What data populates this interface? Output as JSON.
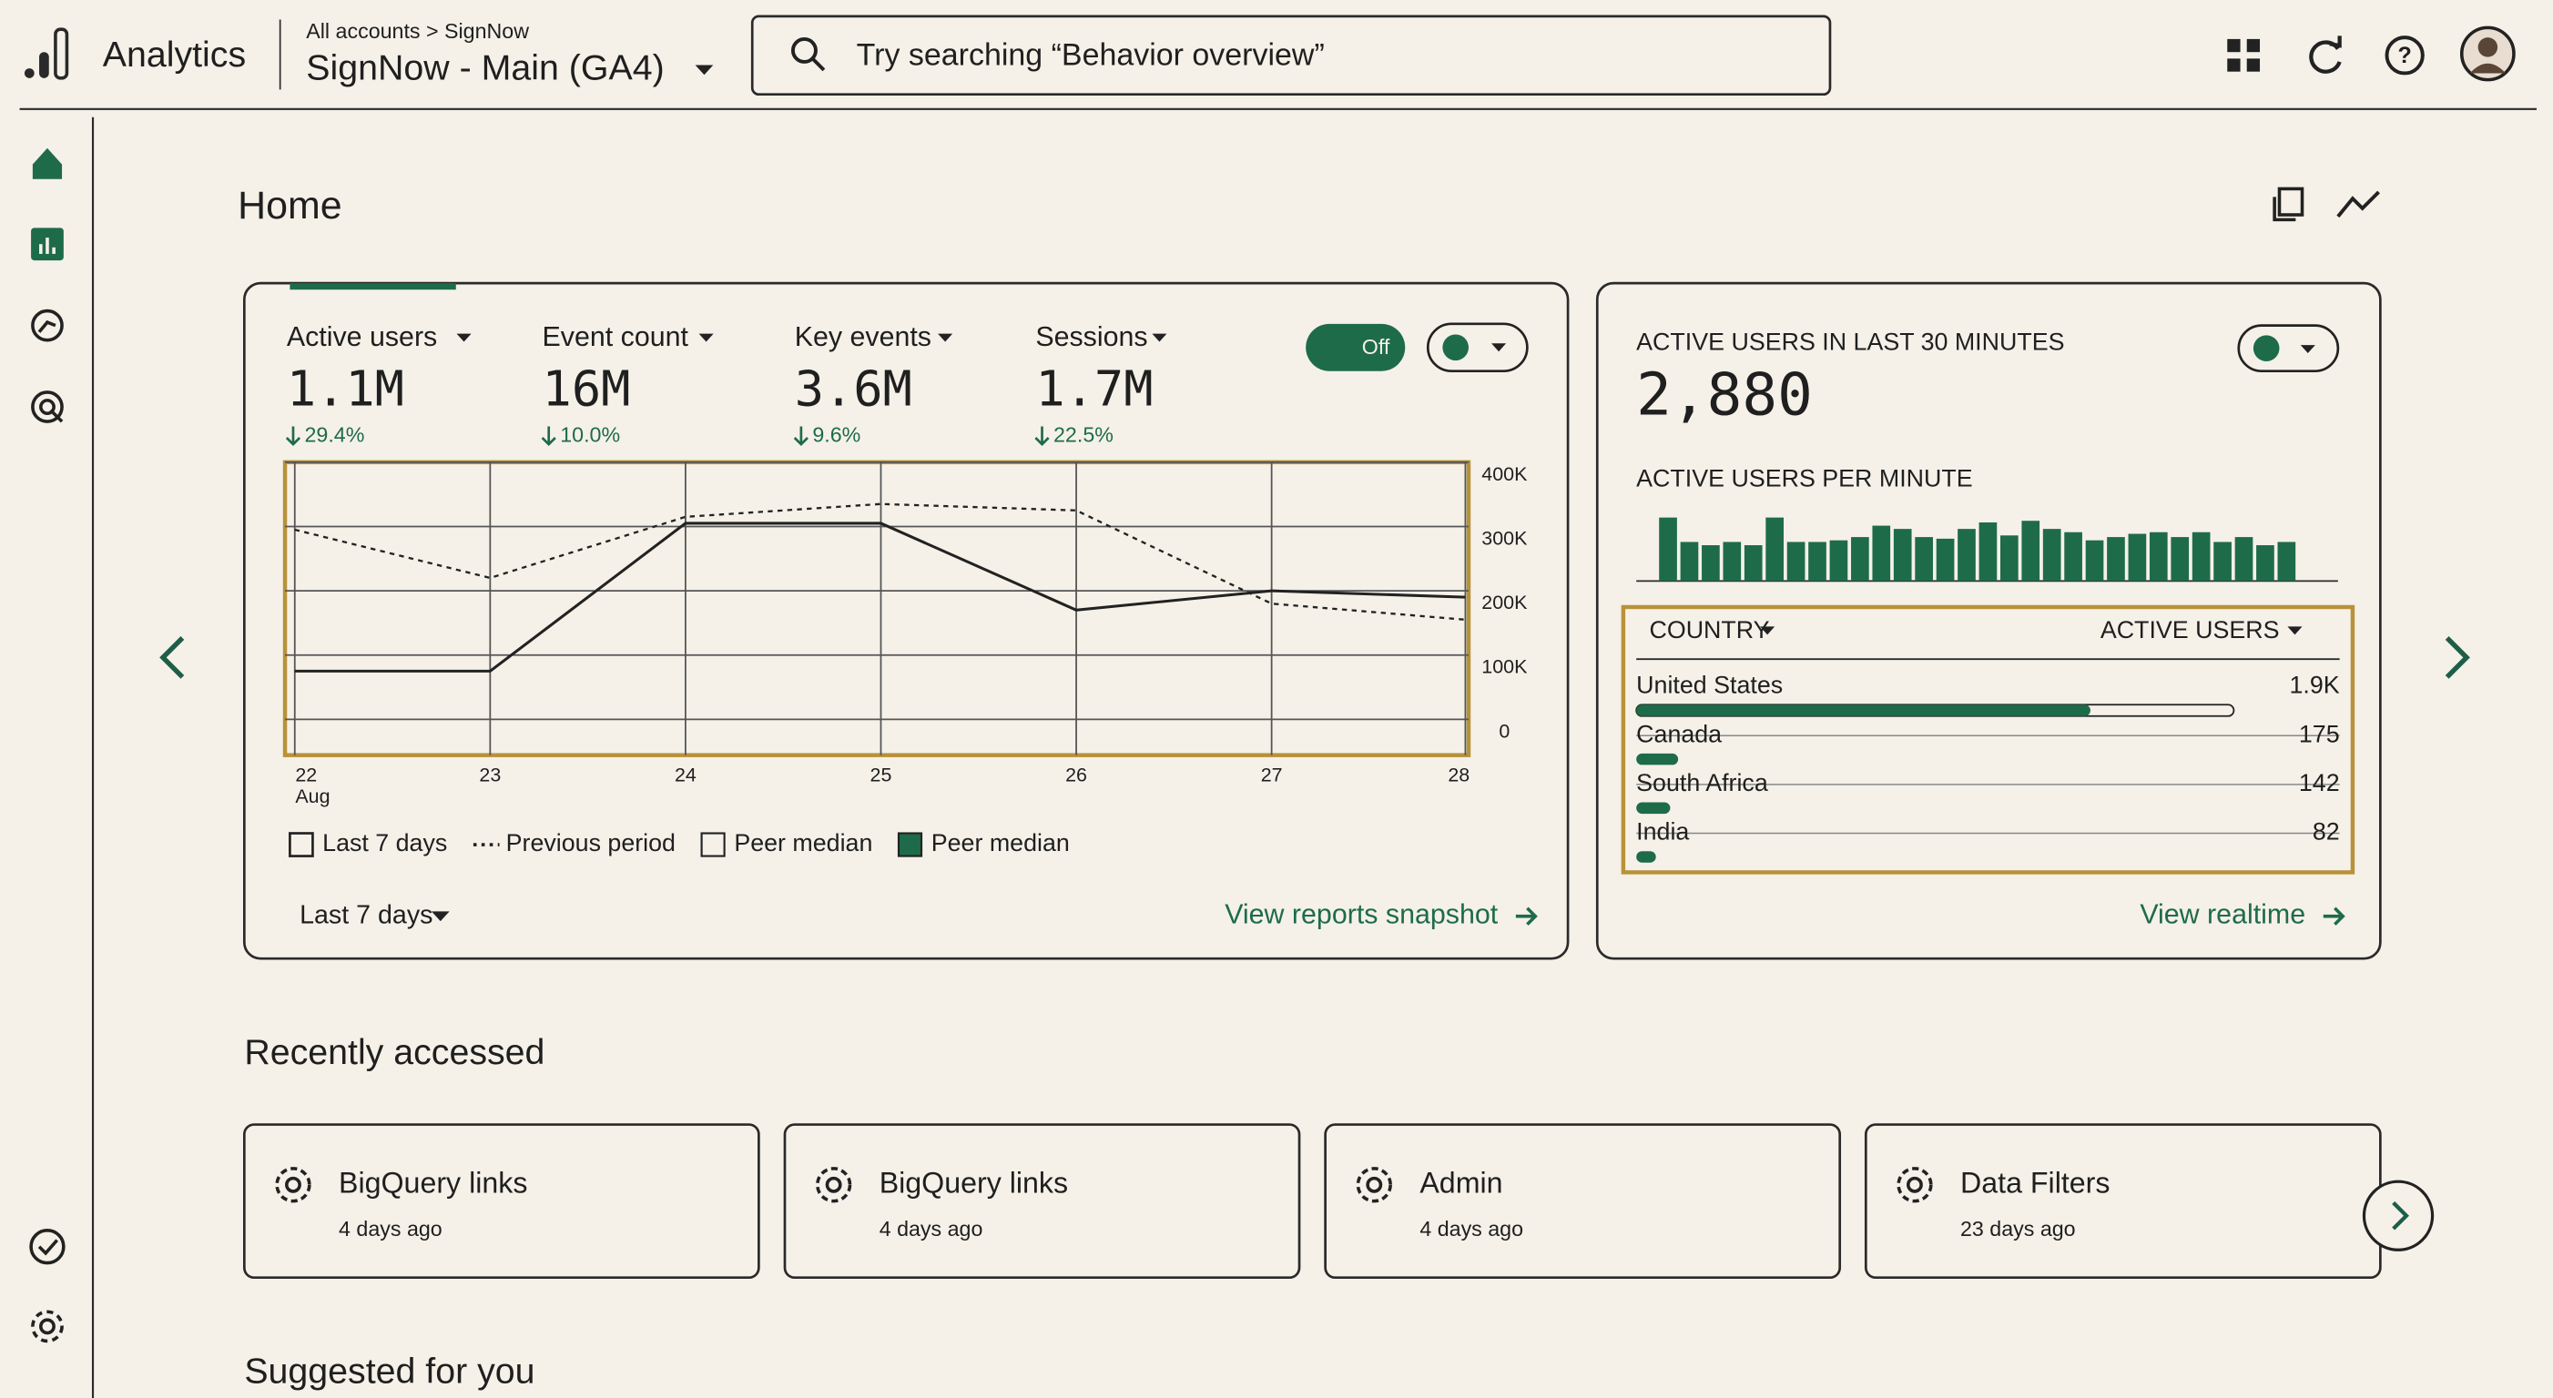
{
  "header": {
    "product": "Analytics",
    "breadcrumb": "All accounts > SignNow",
    "property": "SignNow - Main (GA4)",
    "search": "Try searching “Behavior overview”"
  },
  "page_title": "Home",
  "overview": {
    "metrics": [
      {
        "name": "Active users",
        "value": "1.1M",
        "change": "29.4%"
      },
      {
        "name": "Event count",
        "value": "16M",
        "change": "10.0%"
      },
      {
        "name": "Key events",
        "value": "3.6M",
        "change": "9.6%"
      },
      {
        "name": "Sessions",
        "value": "1.7M",
        "change": "22.5%"
      }
    ],
    "toggle": "Off",
    "date_range": "Last 7 days",
    "link": "View reports snapshot",
    "peer_legend": [
      "Peer median",
      "Peer median"
    ],
    "chart_data": {
      "type": "line",
      "categories": [
        "22",
        "23",
        "24",
        "25",
        "26",
        "27",
        "28"
      ],
      "x_sublabel": "Aug",
      "series": [
        {
          "name": "Last 7 days",
          "color": "#222222",
          "style": "solid",
          "values": [
            75000,
            75000,
            305000,
            305000,
            170000,
            200000,
            190000
          ]
        },
        {
          "name": "Previous period",
          "color": "#222222",
          "style": "dotted",
          "values": [
            295000,
            220000,
            315000,
            335000,
            325000,
            180000,
            155000
          ]
        }
      ],
      "ylim": [
        0,
        400000
      ],
      "yticks": [
        {
          "value": 0,
          "label": "0"
        },
        {
          "value": 100000,
          "label": "100K"
        },
        {
          "value": 200000,
          "label": "200K"
        },
        {
          "value": 300000,
          "label": "300K"
        },
        {
          "value": 400000,
          "label": "400K"
        }
      ],
      "grid": true
    }
  },
  "realtime": {
    "title": "ACTIVE USERS IN LAST 30 MINUTES",
    "value": "2,880",
    "subtitle": "ACTIVE USERS PER MINUTE",
    "link": "View realtime",
    "chart_data": {
      "type": "bar",
      "color": "#1e6b4a",
      "values": [
        117,
        72,
        66,
        72,
        66,
        117,
        72,
        72,
        75,
        81,
        102,
        96,
        81,
        78,
        96,
        108,
        84,
        111,
        96,
        90,
        75,
        81,
        87,
        90,
        81,
        90,
        72,
        81,
        66,
        72
      ],
      "ylim": [
        0,
        120
      ]
    },
    "table": {
      "headers": [
        "COUNTRY",
        "ACTIVE USERS"
      ],
      "xlim": [
        0,
        2500
      ],
      "rows": [
        {
          "country": "United States",
          "value": 1900,
          "value_label": "1.9K"
        },
        {
          "country": "Canada",
          "value": 175,
          "value_label": "175"
        },
        {
          "country": "South Africa",
          "value": 142,
          "value_label": "142"
        },
        {
          "country": "India",
          "value": 82,
          "value_label": "82"
        }
      ]
    }
  },
  "recent": {
    "title": "Recently accessed",
    "items": [
      {
        "title": "BigQuery links",
        "time": "4 days ago"
      },
      {
        "title": "BigQuery links",
        "time": "4 days ago"
      },
      {
        "title": "Admin",
        "time": "4 days ago"
      },
      {
        "title": "Data Filters",
        "time": "23 days ago"
      }
    ]
  },
  "suggested": {
    "title": "Suggested for you"
  }
}
